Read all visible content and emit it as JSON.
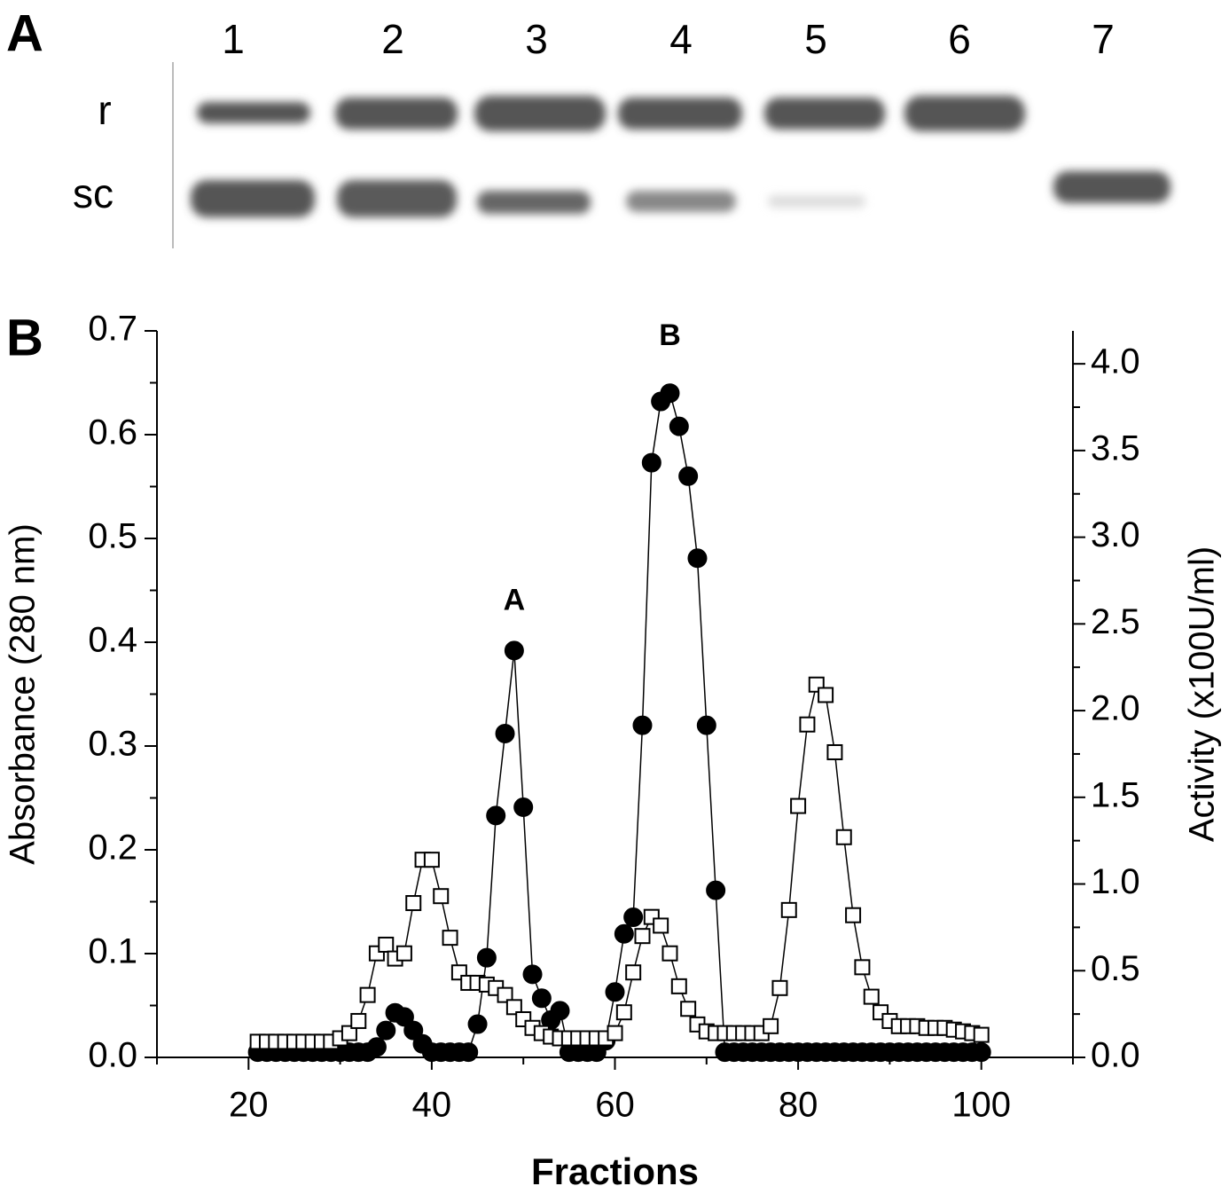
{
  "gel": {
    "panel": "A",
    "lanes": [
      "1",
      "2",
      "3",
      "4",
      "5",
      "6",
      "7"
    ],
    "rows": [
      "r",
      "sc"
    ]
  },
  "chart_data": {
    "type": "line",
    "panel": "B",
    "xlabel": "Fractions",
    "ylabel": "Absorbance (280 nm)",
    "y2label": "Activity (x100U/ml)",
    "x": [
      21,
      22,
      23,
      24,
      25,
      26,
      27,
      28,
      29,
      30,
      31,
      32,
      33,
      34,
      35,
      36,
      37,
      38,
      39,
      40,
      41,
      42,
      43,
      44,
      45,
      46,
      47,
      48,
      49,
      50,
      51,
      52,
      53,
      54,
      55,
      56,
      57,
      58,
      59,
      60,
      61,
      62,
      63,
      64,
      65,
      66,
      67,
      68,
      69,
      70,
      71,
      72,
      73,
      74,
      75,
      76,
      77,
      78,
      79,
      80,
      81,
      82,
      83,
      84,
      85,
      86,
      87,
      88,
      89,
      90,
      91,
      92,
      93,
      94,
      95,
      96,
      97,
      98,
      99,
      100
    ],
    "series": [
      {
        "marker": "circle",
        "color": "#000000",
        "fill": "#000000",
        "axis": "y",
        "values": [
          0.005,
          0.005,
          0.005,
          0.005,
          0.005,
          0.005,
          0.005,
          0.005,
          0.005,
          0.005,
          0.005,
          0.005,
          0.005,
          0.01,
          0.026,
          0.043,
          0.039,
          0.026,
          0.013,
          0.005,
          0.005,
          0.005,
          0.005,
          0.005,
          0.032,
          0.096,
          0.233,
          0.312,
          0.392,
          0.241,
          0.08,
          0.057,
          0.036,
          0.045,
          0.005,
          0.005,
          0.005,
          0.005,
          0.016,
          0.063,
          0.119,
          0.135,
          0.32,
          0.573,
          0.632,
          0.64,
          0.608,
          0.56,
          0.481,
          0.32,
          0.161,
          0.005,
          0.005,
          0.005,
          0.005,
          0.005,
          0.005,
          0.005,
          0.005,
          0.005,
          0.005,
          0.005,
          0.005,
          0.005,
          0.005,
          0.005,
          0.005,
          0.005,
          0.005,
          0.005,
          0.005,
          0.005,
          0.005,
          0.005,
          0.005,
          0.005,
          0.005,
          0.005,
          0.005,
          0.005
        ]
      },
      {
        "marker": "square",
        "color": "#000000",
        "fill": "#ffffff",
        "axis": "y2",
        "values": [
          0.09,
          0.09,
          0.09,
          0.09,
          0.09,
          0.09,
          0.09,
          0.09,
          0.09,
          0.11,
          0.14,
          0.21,
          0.36,
          0.6,
          0.65,
          0.57,
          0.6,
          0.89,
          1.14,
          1.14,
          0.93,
          0.69,
          0.49,
          0.43,
          0.43,
          0.42,
          0.4,
          0.36,
          0.29,
          0.22,
          0.17,
          0.14,
          0.12,
          0.11,
          0.11,
          0.11,
          0.11,
          0.11,
          0.11,
          0.14,
          0.26,
          0.49,
          0.7,
          0.81,
          0.76,
          0.6,
          0.41,
          0.28,
          0.19,
          0.15,
          0.14,
          0.14,
          0.14,
          0.14,
          0.14,
          0.14,
          0.18,
          0.4,
          0.85,
          1.45,
          1.92,
          2.15,
          2.09,
          1.76,
          1.27,
          0.82,
          0.52,
          0.35,
          0.26,
          0.21,
          0.18,
          0.18,
          0.18,
          0.17,
          0.17,
          0.17,
          0.16,
          0.15,
          0.14,
          0.13
        ]
      }
    ],
    "annotations": [
      {
        "text": "A",
        "x": 49,
        "y": 0.439
      },
      {
        "text": "B",
        "x": 66,
        "y": 0.694
      }
    ],
    "xlim": [
      10,
      110
    ],
    "xticks": [
      20,
      40,
      60,
      80,
      100
    ],
    "xminor": [
      10,
      30,
      50,
      70,
      90,
      110
    ],
    "ylim": [
      0,
      0.7
    ],
    "yticks": [
      {
        "value": 0,
        "label": "0.0"
      },
      0.1,
      0.2,
      0.3,
      0.4,
      0.5,
      0.6,
      0.7
    ],
    "yminor": [
      0.05,
      0.15,
      0.25,
      0.35,
      0.45,
      0.55,
      0.65
    ],
    "y2lim": [
      0,
      4.19
    ],
    "y2ticks": [
      {
        "value": 0,
        "label": "0.0"
      },
      0.5,
      {
        "value": 1,
        "label": "1.0"
      },
      1.5,
      {
        "value": 2,
        "label": "2.0"
      },
      2.5,
      {
        "value": 3,
        "label": "3.0"
      },
      3.5,
      {
        "value": 4,
        "label": "4.0"
      }
    ],
    "y2minor": [
      0.25,
      0.75,
      1.25,
      1.75,
      2.25,
      2.75,
      3.25,
      3.75
    ]
  }
}
